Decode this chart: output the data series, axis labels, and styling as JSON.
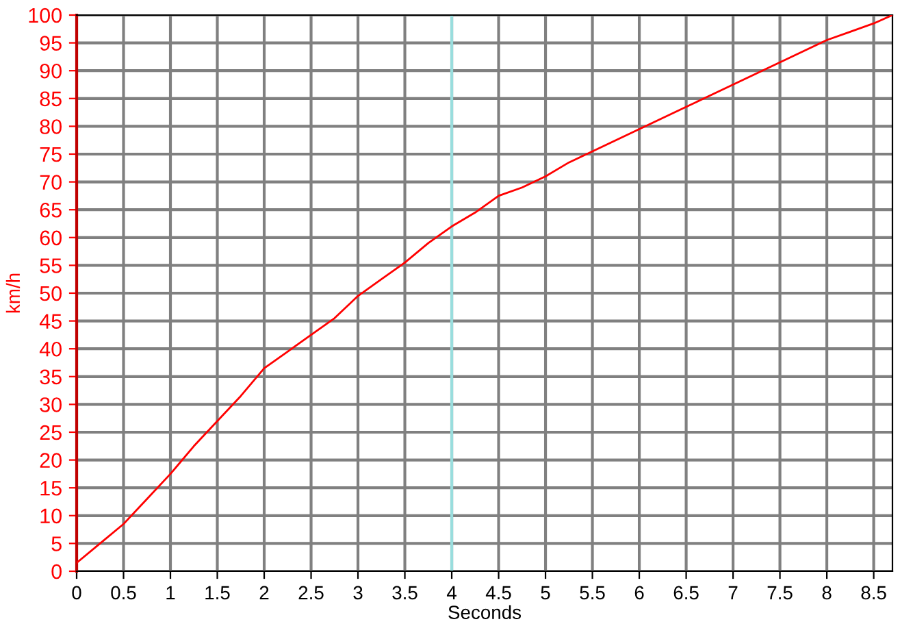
{
  "chart_data": {
    "type": "line",
    "xlabel": "Seconds",
    "ylabel": "km/h",
    "x": [
      0,
      0.25,
      0.5,
      0.75,
      1,
      1.25,
      1.5,
      1.75,
      2,
      2.25,
      2.5,
      2.75,
      3,
      3.25,
      3.5,
      3.75,
      4,
      4.25,
      4.5,
      4.75,
      5,
      5.25,
      5.5,
      5.75,
      6,
      6.25,
      6.5,
      6.75,
      7,
      7.25,
      7.5,
      7.75,
      8,
      8.25,
      8.5,
      8.7
    ],
    "series": [
      {
        "color": "#ff0000",
        "values": [
          1.5,
          5,
          8.5,
          13,
          17.5,
          22.5,
          27,
          31.5,
          36.5,
          39.5,
          42.5,
          45.5,
          49.5,
          52.5,
          55.5,
          59,
          62,
          64.5,
          67.5,
          69,
          71,
          73.5,
          75.5,
          77.5,
          79.5,
          81.5,
          83.5,
          85.5,
          87.5,
          89.5,
          91.5,
          93.5,
          95.5,
          97,
          98.5,
          100
        ]
      }
    ],
    "xlim": [
      0,
      8.7
    ],
    "ylim": [
      0,
      100
    ],
    "xticks": [
      0,
      0.5,
      1,
      1.5,
      2,
      2.5,
      3,
      3.5,
      4,
      4.5,
      5,
      5.5,
      6,
      6.5,
      7,
      7.5,
      8,
      8.5
    ],
    "yticks": [
      0,
      5,
      10,
      15,
      20,
      25,
      30,
      35,
      40,
      45,
      50,
      55,
      60,
      65,
      70,
      75,
      80,
      85,
      90,
      95,
      100
    ],
    "ref_lines": [
      {
        "axis": "x",
        "value": 4,
        "color": "#99dddd"
      }
    ],
    "grid": true,
    "marker": "none",
    "line_style": "solid"
  }
}
